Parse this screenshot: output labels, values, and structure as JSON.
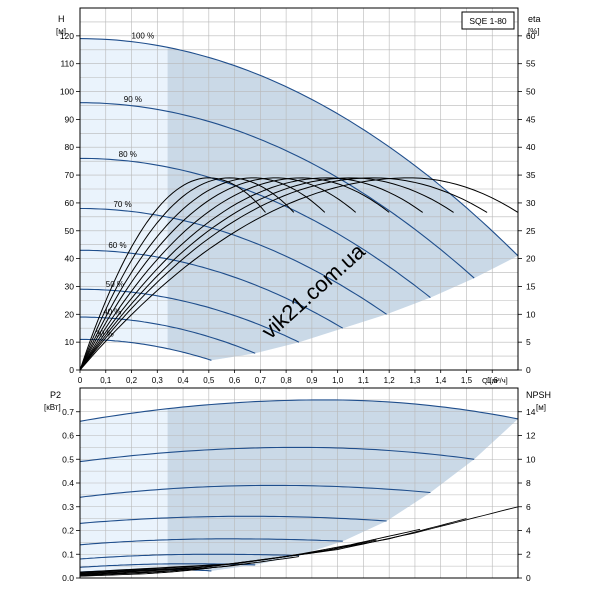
{
  "model_label": "SQE 1-80",
  "watermark": "vik21.com.ua",
  "chart_data": [
    {
      "type": "line",
      "panel": "head-efficiency",
      "xlabel": "Q [м³/ч]",
      "xlim": [
        0,
        1.7
      ],
      "xticks": [
        0,
        0.1,
        0.2,
        0.3,
        0.4,
        0.5,
        0.6,
        0.7,
        0.8,
        0.9,
        1.0,
        1.1,
        1.2,
        1.3,
        1.4,
        1.5,
        1.6
      ],
      "xtick_labels": [
        "0",
        "0,1",
        "0,2",
        "0,3",
        "0,4",
        "0,5",
        "0,6",
        "0,7",
        "0,8",
        "0,9",
        "1,0",
        "1,1",
        "1,2",
        "1,3",
        "1,4",
        "1,5",
        "1,6"
      ],
      "ylabel_left": [
        "H",
        "[м]"
      ],
      "ylim_left": [
        0,
        130
      ],
      "yticks_left": [
        0,
        10,
        20,
        30,
        40,
        50,
        60,
        70,
        80,
        90,
        100,
        110,
        120
      ],
      "ylabel_right": [
        "eta",
        "[%]"
      ],
      "ylim_right": [
        0,
        65
      ],
      "yticks_right": [
        0,
        5,
        10,
        15,
        20,
        25,
        30,
        35,
        40,
        45,
        50,
        55,
        60
      ],
      "grid": true,
      "shaded_region": {
        "x_start": 0.34
      },
      "head_curves": [
        {
          "label": "100 %",
          "h0": 119,
          "qmax": 1.7,
          "hmax": 41
        },
        {
          "label": "90 %",
          "h0": 96,
          "qmax": 1.53,
          "hmax": 33
        },
        {
          "label": "80 %",
          "h0": 76,
          "qmax": 1.36,
          "hmax": 26
        },
        {
          "label": "70 %",
          "h0": 58,
          "qmax": 1.19,
          "hmax": 20
        },
        {
          "label": "60 %",
          "h0": 43,
          "qmax": 1.02,
          "hmax": 15
        },
        {
          "label": "50 %",
          "h0": 29,
          "qmax": 0.85,
          "hmax": 10
        },
        {
          "label": "40 %",
          "h0": 19,
          "qmax": 0.68,
          "hmax": 6
        },
        {
          "label": "30 %",
          "h0": 11,
          "qmax": 0.51,
          "hmax": 3.5
        }
      ],
      "efficiency_curves": [
        {
          "qpeak": 0.5,
          "qend": 0.72,
          "peak": 34.5
        },
        {
          "qpeak": 0.58,
          "qend": 0.83,
          "peak": 34.5
        },
        {
          "qpeak": 0.67,
          "qend": 0.95,
          "peak": 34.5
        },
        {
          "qpeak": 0.76,
          "qend": 1.07,
          "peak": 34.5
        },
        {
          "qpeak": 0.86,
          "qend": 1.2,
          "peak": 34.5
        },
        {
          "qpeak": 0.96,
          "qend": 1.33,
          "peak": 34.5
        },
        {
          "qpeak": 1.05,
          "qend": 1.45,
          "peak": 34.5
        },
        {
          "qpeak": 1.14,
          "qend": 1.58,
          "peak": 34.5
        },
        {
          "qpeak": 1.28,
          "qend": 1.7,
          "peak": 34.5
        }
      ]
    },
    {
      "type": "line",
      "panel": "power-npsh",
      "ylabel_left": [
        "P2",
        "[кВт]"
      ],
      "ylim_left": [
        0,
        0.8
      ],
      "yticks_left": [
        0,
        0.1,
        0.2,
        0.3,
        0.4,
        0.5,
        0.6,
        0.7
      ],
      "ytick_labels_left": [
        "0.0",
        "0.1",
        "0.2",
        "0.3",
        "0.4",
        "0.5",
        "0.6",
        "0.7"
      ],
      "ylabel_right": [
        "NPSH",
        "[м]"
      ],
      "ylim_right": [
        0,
        16
      ],
      "yticks_right": [
        0,
        2,
        4,
        6,
        8,
        10,
        12,
        14
      ],
      "grid": true,
      "power_curves": [
        {
          "p0": 0.66,
          "peak": 0.75,
          "qpeak": 0.95,
          "qmax": 1.7,
          "pend": 0.67
        },
        {
          "p0": 0.49,
          "peak": 0.55,
          "qpeak": 0.85,
          "qmax": 1.53,
          "pend": 0.5
        },
        {
          "p0": 0.34,
          "peak": 0.39,
          "qpeak": 0.75,
          "qmax": 1.36,
          "pend": 0.36
        },
        {
          "p0": 0.23,
          "peak": 0.26,
          "qpeak": 0.65,
          "qmax": 1.19,
          "pend": 0.24
        },
        {
          "p0": 0.14,
          "peak": 0.165,
          "qpeak": 0.57,
          "qmax": 1.02,
          "pend": 0.155
        },
        {
          "p0": 0.08,
          "peak": 0.1,
          "qpeak": 0.5,
          "qmax": 0.85,
          "pend": 0.095
        },
        {
          "p0": 0.045,
          "peak": 0.06,
          "qpeak": 0.42,
          "qmax": 0.68,
          "pend": 0.055
        },
        {
          "p0": 0.025,
          "peak": 0.035,
          "qpeak": 0.35,
          "qmax": 0.51,
          "pend": 0.03
        }
      ],
      "npsh_curves": [
        {
          "q": [
            0.0,
            0.6,
            1.0,
            1.3,
            1.7
          ],
          "v": [
            0.5,
            1.2,
            2.4,
            3.8,
            6.0
          ]
        },
        {
          "q": [
            0.0,
            0.55,
            0.9,
            1.2,
            1.5
          ],
          "v": [
            0.45,
            1.1,
            2.1,
            3.3,
            5.0
          ]
        },
        {
          "q": [
            0.0,
            0.5,
            0.8,
            1.05,
            1.32
          ],
          "v": [
            0.4,
            0.95,
            1.8,
            2.8,
            4.1
          ]
        },
        {
          "q": [
            0.0,
            0.45,
            0.7,
            0.95,
            1.15
          ],
          "v": [
            0.35,
            0.85,
            1.5,
            2.3,
            3.2
          ]
        },
        {
          "q": [
            0.0,
            0.4,
            0.6,
            0.8,
            1.0
          ],
          "v": [
            0.3,
            0.75,
            1.2,
            1.8,
            2.5
          ]
        },
        {
          "q": [
            0.0,
            0.35,
            0.55,
            0.7,
            0.85
          ],
          "v": [
            0.25,
            0.6,
            0.95,
            1.35,
            1.8
          ]
        },
        {
          "q": [
            0.0,
            0.3,
            0.45,
            0.58,
            0.68
          ],
          "v": [
            0.2,
            0.5,
            0.75,
            1.0,
            1.3
          ]
        },
        {
          "q": [
            0.0,
            0.25,
            0.35,
            0.45,
            0.51
          ],
          "v": [
            0.15,
            0.35,
            0.5,
            0.7,
            0.85
          ]
        }
      ]
    }
  ],
  "colors": {
    "curve_blue": "#1f4e8c",
    "curve_black": "#000000",
    "shade_light": "#eaf3fc",
    "shade_dark": "#cad9e7",
    "grid": "#b8b8b8",
    "watermark": "#c7d3df"
  }
}
